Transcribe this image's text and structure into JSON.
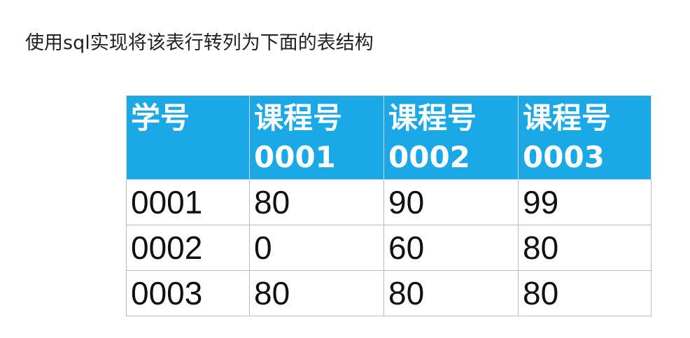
{
  "question": "使用sql实现将该表行转列为下面的表结构",
  "table": {
    "headers": [
      {
        "line1": "学号",
        "line2": ""
      },
      {
        "line1": "课程号",
        "line2": "0001"
      },
      {
        "line1": "课程号",
        "line2": "0002"
      },
      {
        "line1": "课程号",
        "line2": "0003"
      }
    ],
    "rows": [
      [
        "0001",
        "80",
        "90",
        "99"
      ],
      [
        "0002",
        "0",
        "60",
        "80"
      ],
      [
        "0003",
        "80",
        "80",
        "80"
      ]
    ]
  },
  "colors": {
    "header_background": "#1aa9e6",
    "header_text": "#ffffff",
    "grid_line": "#bdbdbd"
  }
}
